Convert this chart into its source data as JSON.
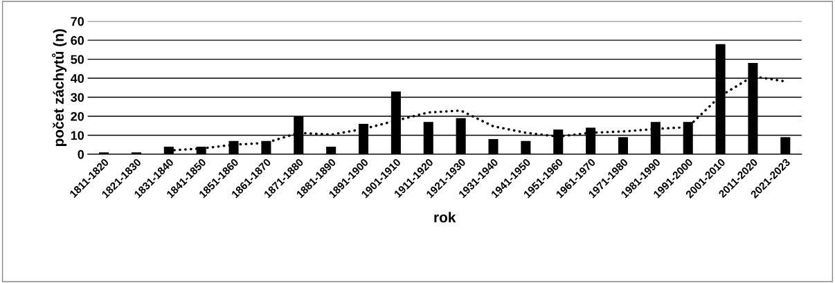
{
  "chart_data": {
    "type": "bar",
    "xlabel": "rok",
    "ylabel": "počet záchytů (n)",
    "categories": [
      "1811-1820",
      "1821-1830",
      "1831-1840",
      "1841-1850",
      "1851-1860",
      "1861-1870",
      "1871-1880",
      "1881-1890",
      "1891-1900",
      "1901-1910",
      "1911-1920",
      "1921-1930",
      "1931-1940",
      "1941-1950",
      "1951-1960",
      "1961-1970",
      "1971-1980",
      "1981-1990",
      "1991-2000",
      "2001-2010",
      "2011-2020",
      "2021-2023"
    ],
    "series": [
      {
        "color": "#000000",
        "values": [
          1,
          1,
          4,
          4,
          7,
          7,
          20,
          4,
          16,
          33,
          17,
          19,
          8,
          7,
          13,
          14,
          9,
          17,
          17,
          58,
          48,
          9
        ]
      },
      {
        "type": "line",
        "color": "#000000",
        "line_style": "dotted",
        "values": [
          null,
          null,
          2,
          3,
          5,
          6,
          11.3,
          10.3,
          13.3,
          17.7,
          22,
          23,
          14.7,
          11.3,
          9.3,
          11.3,
          12,
          13.3,
          14.3,
          30.7,
          41,
          38.3
        ]
      }
    ],
    "ylim": [
      0,
      70
    ],
    "yticks": [
      0,
      10,
      20,
      30,
      40,
      50,
      60,
      70
    ],
    "grid": "y",
    "legend": false
  }
}
